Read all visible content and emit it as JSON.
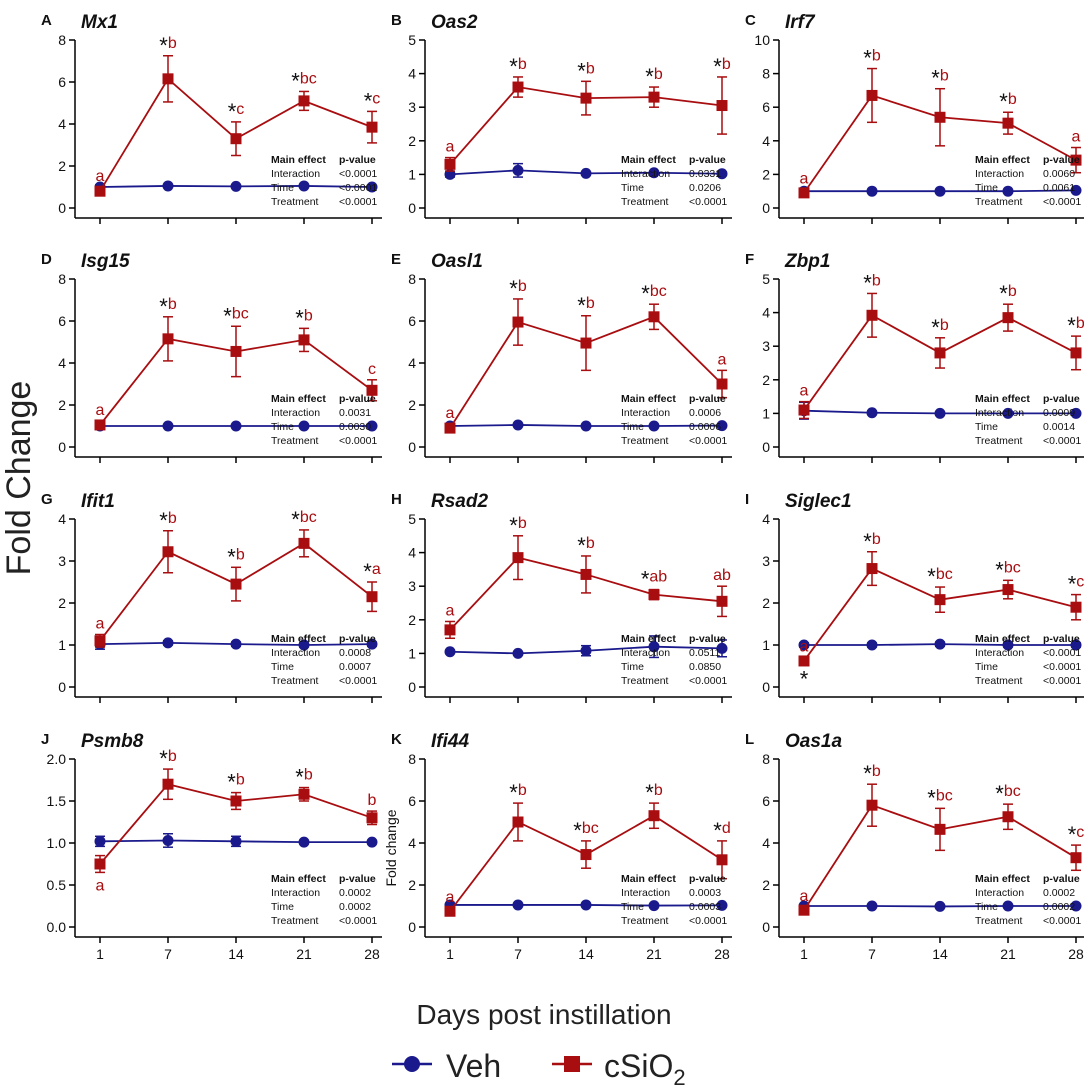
{
  "figure": {
    "y_axis_label": "Fold Change",
    "x_axis_label": "Days post instillation",
    "legend": {
      "veh": "Veh",
      "csio2_prefix": "cSiO",
      "csio2_sub": "2"
    },
    "table_header": {
      "effect": "Main effect",
      "pvalue": "p-value"
    },
    "table_rows": [
      "Interaction",
      "Time",
      "Treatment"
    ],
    "colors": {
      "veh": "#1a1a8c",
      "csio2": "#a80d10",
      "axis": "#000000"
    }
  },
  "chart_data": [
    {
      "letter": "A",
      "gene": "Mx1",
      "type": "line",
      "x": [
        1,
        7,
        14,
        21,
        28
      ],
      "ylim": [
        0,
        8
      ],
      "yticks": [
        "0",
        "2",
        "4",
        "6",
        "8"
      ],
      "series": [
        {
          "name": "Veh",
          "values": [
            1.0,
            1.05,
            1.03,
            1.05,
            1.0
          ],
          "err": [
            0.1,
            0.05,
            0.05,
            0.05,
            0.05
          ]
        },
        {
          "name": "cSiO2",
          "values": [
            0.8,
            6.15,
            3.3,
            5.1,
            3.85
          ],
          "err": [
            0.2,
            1.1,
            0.8,
            0.45,
            0.75
          ]
        }
      ],
      "annotations": [
        "a",
        "*b",
        "*c",
        "*bc",
        "*c"
      ],
      "pvalues": [
        "<0.0001",
        "<0.0001",
        "<0.0001"
      ]
    },
    {
      "letter": "B",
      "gene": "Oas2",
      "type": "line",
      "x": [
        1,
        7,
        14,
        21,
        28
      ],
      "ylim": [
        0,
        5
      ],
      "yticks": [
        "0",
        "1",
        "2",
        "3",
        "4",
        "5"
      ],
      "series": [
        {
          "name": "Veh",
          "values": [
            1.0,
            1.12,
            1.03,
            1.05,
            1.02
          ],
          "err": [
            0.08,
            0.2,
            0.05,
            0.05,
            0.05
          ]
        },
        {
          "name": "cSiO2",
          "values": [
            1.3,
            3.6,
            3.27,
            3.3,
            3.05
          ],
          "err": [
            0.2,
            0.3,
            0.5,
            0.3,
            0.85
          ]
        }
      ],
      "annotations": [
        "a",
        "*b",
        "*b",
        "*b",
        "*b"
      ],
      "pvalues": [
        "0.0331",
        "0.0206",
        "<0.0001"
      ]
    },
    {
      "letter": "C",
      "gene": "Irf7",
      "type": "line",
      "x": [
        1,
        7,
        14,
        21,
        28
      ],
      "ylim": [
        0,
        10
      ],
      "yticks": [
        "0",
        "2",
        "4",
        "6",
        "8",
        "10"
      ],
      "series": [
        {
          "name": "Veh",
          "values": [
            1.0,
            1.0,
            1.0,
            1.0,
            1.05
          ],
          "err": [
            0.1,
            0.05,
            0.05,
            0.05,
            0.05
          ]
        },
        {
          "name": "cSiO2",
          "values": [
            0.9,
            6.7,
            5.4,
            5.05,
            2.85
          ],
          "err": [
            0.2,
            1.6,
            1.7,
            0.65,
            0.75
          ]
        }
      ],
      "annotations": [
        "a",
        "*b",
        "*b",
        "*b",
        "a"
      ],
      "pvalues": [
        "0.0060",
        "0.0061",
        "<0.0001"
      ]
    },
    {
      "letter": "D",
      "gene": "Isg15",
      "type": "line",
      "x": [
        1,
        7,
        14,
        21,
        28
      ],
      "ylim": [
        0,
        8
      ],
      "yticks": [
        "0",
        "2",
        "4",
        "6",
        "8"
      ],
      "series": [
        {
          "name": "Veh",
          "values": [
            1.0,
            1.0,
            1.0,
            1.0,
            1.0
          ],
          "err": [
            0.05,
            0.05,
            0.05,
            0.05,
            0.05
          ]
        },
        {
          "name": "cSiO2",
          "values": [
            1.05,
            5.15,
            4.55,
            5.1,
            2.7
          ],
          "err": [
            0.2,
            1.05,
            1.2,
            0.55,
            0.5
          ]
        }
      ],
      "annotations": [
        "a",
        "*b",
        "*bc",
        "*b",
        "c"
      ],
      "pvalues": [
        "0.0031",
        "0.0030",
        "<0.0001"
      ]
    },
    {
      "letter": "E",
      "gene": "Oasl1",
      "type": "line",
      "x": [
        1,
        7,
        14,
        21,
        28
      ],
      "ylim": [
        0,
        8
      ],
      "yticks": [
        "0",
        "2",
        "4",
        "6",
        "8"
      ],
      "series": [
        {
          "name": "Veh",
          "values": [
            1.0,
            1.05,
            1.0,
            1.0,
            1.02
          ],
          "err": [
            0.05,
            0.05,
            0.05,
            0.05,
            0.05
          ]
        },
        {
          "name": "cSiO2",
          "values": [
            0.9,
            5.95,
            4.95,
            6.2,
            3.0
          ],
          "err": [
            0.2,
            1.1,
            1.3,
            0.6,
            0.65
          ]
        }
      ],
      "annotations": [
        "a",
        "*b",
        "*b",
        "*bc",
        "a"
      ],
      "pvalues": [
        "0.0006",
        "0.0006",
        "<0.0001"
      ]
    },
    {
      "letter": "F",
      "gene": "Zbp1",
      "type": "line",
      "x": [
        1,
        7,
        14,
        21,
        28
      ],
      "ylim": [
        0,
        5
      ],
      "yticks": [
        "0",
        "1",
        "2",
        "3",
        "4",
        "5"
      ],
      "series": [
        {
          "name": "Veh",
          "values": [
            1.08,
            1.02,
            1.0,
            1.0,
            1.0
          ],
          "err": [
            0.25,
            0.05,
            0.05,
            0.05,
            0.05
          ]
        },
        {
          "name": "cSiO2",
          "values": [
            1.1,
            3.92,
            2.8,
            3.85,
            2.8
          ],
          "err": [
            0.25,
            0.65,
            0.45,
            0.4,
            0.5
          ]
        }
      ],
      "annotations": [
        "a",
        "*b",
        "*b",
        "*b",
        "*b"
      ],
      "pvalues": [
        "0.0009",
        "0.0014",
        "<0.0001"
      ]
    },
    {
      "letter": "G",
      "gene": "Ifit1",
      "type": "line",
      "x": [
        1,
        7,
        14,
        21,
        28
      ],
      "ylim": [
        0,
        4
      ],
      "yticks": [
        "0",
        "1",
        "2",
        "3",
        "4"
      ],
      "series": [
        {
          "name": "Veh",
          "values": [
            1.02,
            1.05,
            1.02,
            1.0,
            1.02
          ],
          "err": [
            0.12,
            0.05,
            0.05,
            0.05,
            0.05
          ]
        },
        {
          "name": "cSiO2",
          "values": [
            1.1,
            3.22,
            2.45,
            3.42,
            2.15
          ],
          "err": [
            0.15,
            0.5,
            0.4,
            0.32,
            0.35
          ]
        }
      ],
      "annotations": [
        "a",
        "*b",
        "*b",
        "*bc",
        "*a"
      ],
      "pvalues": [
        "0.0008",
        "0.0007",
        "<0.0001"
      ]
    },
    {
      "letter": "H",
      "gene": "Rsad2",
      "type": "line",
      "x": [
        1,
        7,
        14,
        21,
        28
      ],
      "ylim": [
        0,
        5
      ],
      "yticks": [
        "0",
        "1",
        "2",
        "3",
        "4",
        "5"
      ],
      "series": [
        {
          "name": "Veh",
          "values": [
            1.05,
            1.0,
            1.08,
            1.2,
            1.15
          ],
          "err": [
            0.05,
            0.05,
            0.15,
            0.32,
            0.25
          ]
        },
        {
          "name": "cSiO2",
          "values": [
            1.7,
            3.85,
            3.35,
            2.75,
            2.55
          ],
          "err": [
            0.25,
            0.65,
            0.55,
            0.15,
            0.45
          ]
        }
      ],
      "annotations": [
        "a",
        "*b",
        "*b",
        "*ab",
        "ab"
      ],
      "pvalues": [
        "0.0511",
        "0.0850",
        "<0.0001"
      ]
    },
    {
      "letter": "I",
      "gene": "Siglec1",
      "type": "line",
      "x": [
        1,
        7,
        14,
        21,
        28
      ],
      "ylim": [
        0,
        4
      ],
      "yticks": [
        "0",
        "1",
        "2",
        "3",
        "4"
      ],
      "series": [
        {
          "name": "Veh",
          "values": [
            1.0,
            1.0,
            1.02,
            1.0,
            1.0
          ],
          "err": [
            0.05,
            0.05,
            0.05,
            0.05,
            0.05
          ]
        },
        {
          "name": "cSiO2",
          "values": [
            0.62,
            2.82,
            2.08,
            2.32,
            1.9
          ],
          "err": [
            0.08,
            0.4,
            0.3,
            0.22,
            0.3
          ]
        }
      ],
      "annotations": [
        "a",
        "*b",
        "*bc",
        "*bc",
        "*c"
      ],
      "extra_star_below_first": true,
      "pvalues": [
        "<0.0001",
        "<0.0001",
        "<0.0001"
      ]
    },
    {
      "letter": "J",
      "gene": "Psmb8",
      "type": "line",
      "x": [
        1,
        7,
        14,
        21,
        28
      ],
      "ylim": [
        0,
        2
      ],
      "yticks": [
        "0.0",
        "0.5",
        "1.0",
        "1.5",
        "2.0"
      ],
      "series": [
        {
          "name": "Veh",
          "values": [
            1.02,
            1.03,
            1.02,
            1.01,
            1.01
          ],
          "err": [
            0.06,
            0.08,
            0.06,
            0.02,
            0.02
          ]
        },
        {
          "name": "cSiO2",
          "values": [
            0.75,
            1.7,
            1.5,
            1.58,
            1.3
          ],
          "err": [
            0.1,
            0.18,
            0.1,
            0.08,
            0.08
          ]
        }
      ],
      "annotations": [
        "a",
        "*b",
        "*b",
        "*b",
        "b"
      ],
      "first_label_below": true,
      "pvalues": [
        "0.0002",
        "0.0002",
        "<0.0001"
      ]
    },
    {
      "letter": "K",
      "gene": "Ifi44",
      "type": "line",
      "x": [
        1,
        7,
        14,
        21,
        28
      ],
      "ylim": [
        0,
        8
      ],
      "yticks": [
        "0",
        "2",
        "4",
        "6",
        "8"
      ],
      "ylabel": "Fold change",
      "series": [
        {
          "name": "Veh",
          "values": [
            1.05,
            1.05,
            1.05,
            1.02,
            1.03
          ],
          "err": [
            0.05,
            0.05,
            0.05,
            0.05,
            0.05
          ]
        },
        {
          "name": "cSiO2",
          "values": [
            0.75,
            5.0,
            3.45,
            5.3,
            3.2
          ],
          "err": [
            0.15,
            0.9,
            0.65,
            0.6,
            0.9
          ]
        }
      ],
      "annotations": [
        "a",
        "*b",
        "*bc",
        "*b",
        "*d"
      ],
      "pvalues": [
        "0.0003",
        "0.0003",
        "<0.0001"
      ]
    },
    {
      "letter": "L",
      "gene": "Oas1a",
      "type": "line",
      "x": [
        1,
        7,
        14,
        21,
        28
      ],
      "ylim": [
        0,
        8
      ],
      "yticks": [
        "0",
        "2",
        "4",
        "6",
        "8"
      ],
      "series": [
        {
          "name": "Veh",
          "values": [
            1.0,
            1.0,
            0.98,
            1.0,
            1.0
          ],
          "err": [
            0.05,
            0.05,
            0.05,
            0.05,
            0.05
          ]
        },
        {
          "name": "cSiO2",
          "values": [
            0.8,
            5.8,
            4.65,
            5.25,
            3.3
          ],
          "err": [
            0.15,
            1.0,
            1.0,
            0.6,
            0.6
          ]
        }
      ],
      "annotations": [
        "a",
        "*b",
        "*bc",
        "*bc",
        "*c"
      ],
      "pvalues": [
        "0.0002",
        "0.0002",
        "<0.0001"
      ]
    }
  ]
}
